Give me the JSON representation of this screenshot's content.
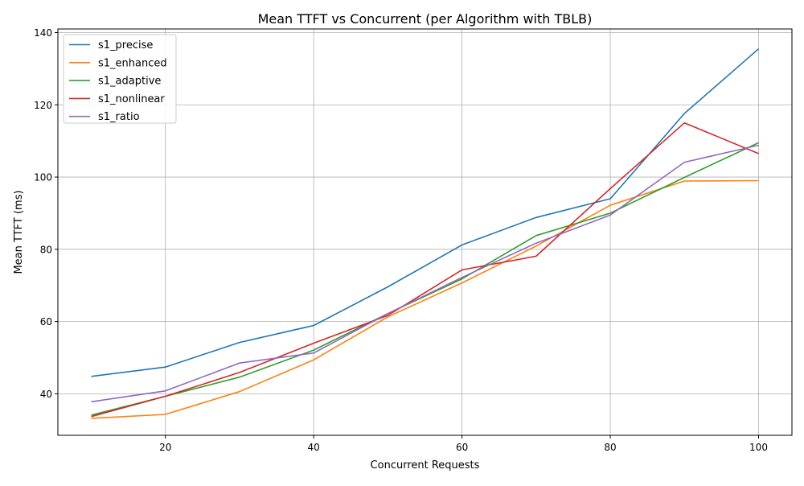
{
  "chart_data": {
    "type": "line",
    "title": "Mean TTFT vs Concurrent (per Algorithm with TBLB)",
    "xlabel": "Concurrent Requests",
    "ylabel": "Mean TTFT (ms)",
    "xlim": [
      5.5,
      104.5
    ],
    "ylim": [
      28.5,
      141
    ],
    "xticks": [
      20,
      40,
      60,
      80,
      100
    ],
    "yticks": [
      40,
      60,
      80,
      100,
      120,
      140
    ],
    "grid": true,
    "legend_position": "top-left",
    "x": [
      10,
      20,
      30,
      40,
      50,
      60,
      70,
      80,
      90,
      100
    ],
    "series": [
      {
        "name": "s1_precise",
        "color": "#1f77b4",
        "values": [
          44.8,
          47.4,
          54.2,
          58.9,
          69.6,
          81.2,
          88.8,
          94.0,
          117.6,
          135.5
        ]
      },
      {
        "name": "s1_enhanced",
        "color": "#ff7f0e",
        "values": [
          33.2,
          34.3,
          40.6,
          49.4,
          61.3,
          70.7,
          80.9,
          92.2,
          98.9,
          99.0
        ]
      },
      {
        "name": "s1_adaptive",
        "color": "#2ca02c",
        "values": [
          34.1,
          39.3,
          44.6,
          52.1,
          62.2,
          71.8,
          83.8,
          90.0,
          99.9,
          109.5
        ]
      },
      {
        "name": "s1_nonlinear",
        "color": "#d62728",
        "values": [
          33.7,
          39.3,
          45.9,
          54.0,
          61.7,
          74.3,
          78.1,
          96.8,
          115.0,
          106.5
        ]
      },
      {
        "name": "s1_ratio",
        "color": "#9467bd",
        "values": [
          37.8,
          40.8,
          48.5,
          51.3,
          62.2,
          72.2,
          81.7,
          89.5,
          104.1,
          108.8
        ]
      }
    ]
  }
}
